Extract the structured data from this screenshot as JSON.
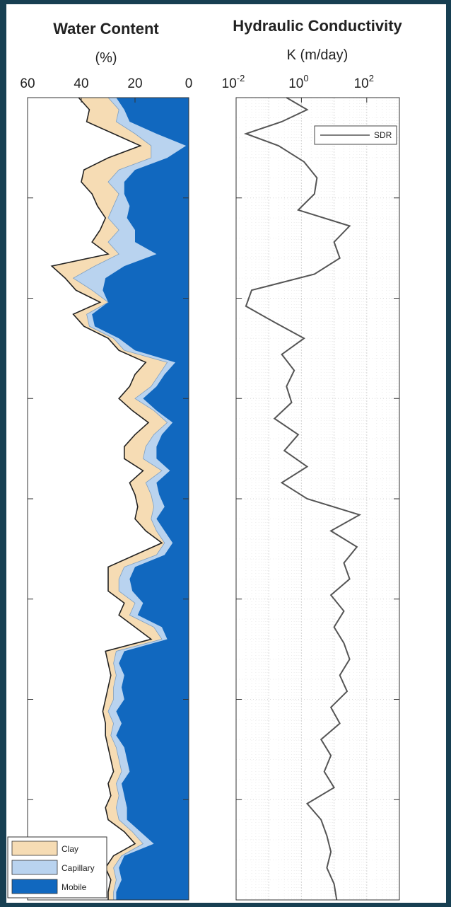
{
  "colors": {
    "background": "#173f52",
    "clay": "#f6dcb4",
    "capillary": "#b9d3ef",
    "mobile": "#1168bf",
    "outline": "#222222",
    "sdr_line": "#555555"
  },
  "chart_data": [
    {
      "type": "area",
      "title": "Water Content",
      "xlabel": "(%)",
      "x_reversed": true,
      "xlim": [
        0,
        60
      ],
      "xticks": [
        "60",
        "40",
        "20",
        "0"
      ],
      "ylim": [
        0,
        100
      ],
      "legend": {
        "placement": "bottom-left",
        "entries": [
          "Clay",
          "Capillary",
          "Mobile"
        ]
      },
      "grid": false,
      "depth": [
        0,
        1.5,
        3,
        4.5,
        6,
        7.5,
        9,
        10.5,
        12,
        13.5,
        15,
        16.5,
        18,
        19.5,
        21,
        22.5,
        24,
        25.5,
        27,
        28.5,
        30,
        31.5,
        33,
        34.5,
        36,
        37.5,
        39,
        40.5,
        42,
        43.5,
        45,
        46.5,
        48,
        49.5,
        51,
        52.5,
        54,
        55.5,
        57,
        58.5,
        60,
        61.5,
        63,
        64.5,
        66,
        67.5,
        69,
        70.5,
        72,
        73.5,
        75,
        76.5,
        78,
        79.5,
        81,
        82.5,
        84,
        85.5,
        87,
        88.5,
        90,
        91.5,
        93,
        94.5,
        96,
        97.5,
        99,
        100
      ],
      "series": [
        {
          "name": "Mobile",
          "values": [
            27,
            24,
            22,
            12,
            1,
            8,
            20,
            24,
            24,
            22,
            23,
            20,
            20,
            12,
            24,
            31,
            32,
            30,
            36,
            35,
            26,
            20,
            5,
            9,
            12,
            17,
            12,
            6,
            10,
            12,
            12,
            7,
            12,
            11,
            9,
            12,
            9,
            6,
            9,
            20,
            22,
            21,
            17,
            19,
            10,
            8,
            24,
            26,
            24,
            25,
            24,
            27,
            25,
            27,
            24,
            23,
            22,
            25,
            24,
            23,
            23,
            18,
            13,
            24,
            26,
            25,
            27,
            27
          ]
        },
        {
          "name": "Capillary",
          "values": [
            30,
            26,
            27,
            20,
            14,
            14,
            26,
            30,
            26,
            28,
            30,
            26,
            30,
            26,
            35,
            43,
            36,
            30,
            38,
            37,
            28,
            24,
            8,
            11,
            14,
            20,
            13,
            8,
            13,
            16,
            17,
            10,
            16,
            14,
            13,
            14,
            12,
            9,
            12,
            24,
            26,
            26,
            20,
            22,
            13,
            10,
            27,
            28,
            27,
            28,
            28,
            30,
            28,
            29,
            27,
            26,
            25,
            27,
            26,
            27,
            26,
            21,
            17,
            25,
            28,
            27,
            28,
            28
          ]
        },
        {
          "name": "Clay",
          "values": [
            41,
            37,
            38,
            28,
            18,
            30,
            39,
            40,
            36,
            34,
            31,
            33,
            36,
            30,
            51,
            46,
            42,
            33,
            43,
            39,
            30,
            26,
            16,
            20,
            22,
            26,
            21,
            15,
            20,
            24,
            24,
            17,
            22,
            20,
            19,
            20,
            16,
            10,
            20,
            30,
            30,
            30,
            24,
            26,
            20,
            14,
            31,
            30,
            29,
            30,
            31,
            32,
            31,
            31,
            30,
            29,
            28,
            30,
            29,
            31,
            30,
            24,
            20,
            28,
            31,
            29,
            30,
            30
          ]
        }
      ]
    },
    {
      "type": "line",
      "title": "Hydraulic Conductivity",
      "xlabel": "K (m/day)",
      "x_scale": "log",
      "xlim": [
        0.01,
        1000
      ],
      "xticks": [
        {
          "value": 0.01,
          "base": "10",
          "exp": "-2"
        },
        {
          "value": 1,
          "base": "10",
          "exp": "0"
        },
        {
          "value": 100,
          "base": "10",
          "exp": "2"
        }
      ],
      "ylim": [
        0,
        100
      ],
      "grid": true,
      "legend": {
        "placement": "top-right",
        "entries": [
          "SDR"
        ]
      },
      "series": [
        {
          "name": "SDR",
          "depth": [
            0,
            1.5,
            3,
            4.5,
            6,
            8,
            10,
            12,
            14,
            16,
            18,
            20,
            22,
            24,
            26,
            28,
            30,
            32,
            34,
            36,
            38,
            40,
            42,
            44,
            46,
            48,
            50,
            52,
            54,
            56,
            58,
            60,
            62,
            64,
            66,
            68,
            70,
            72,
            74,
            76,
            78,
            80,
            82,
            84,
            86,
            88,
            90,
            92,
            94,
            96,
            98,
            100
          ],
          "values": [
            0.35,
            1.5,
            0.25,
            0.02,
            0.2,
            1.2,
            3,
            2.5,
            0.8,
            30,
            10,
            15,
            2.5,
            0.03,
            0.02,
            0.15,
            1.2,
            0.25,
            0.6,
            0.35,
            0.5,
            0.15,
            0.8,
            0.3,
            1.5,
            0.25,
            1.5,
            60,
            8,
            50,
            20,
            30,
            8,
            20,
            10,
            20,
            30,
            15,
            25,
            8,
            15,
            4,
            8,
            5,
            10,
            1.5,
            4,
            6,
            8,
            6,
            10,
            12
          ]
        }
      ]
    }
  ]
}
